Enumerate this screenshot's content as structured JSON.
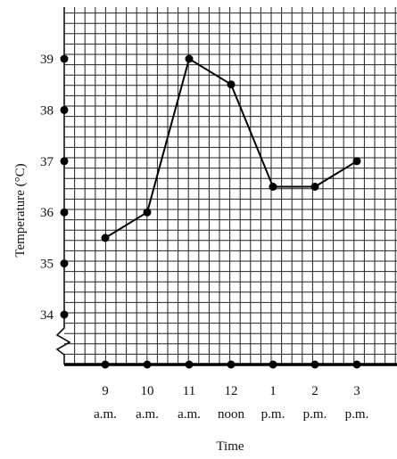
{
  "chart_data": {
    "type": "line",
    "xlabel": "Time",
    "ylabel": "Temperature (°C)",
    "categories": [
      {
        "top": "9",
        "bottom": "a.m."
      },
      {
        "top": "10",
        "bottom": "a.m."
      },
      {
        "top": "11",
        "bottom": "a.m."
      },
      {
        "top": "12",
        "bottom": "noon"
      },
      {
        "top": "1",
        "bottom": "p.m."
      },
      {
        "top": "2",
        "bottom": "p.m."
      },
      {
        "top": "3",
        "bottom": "p.m."
      }
    ],
    "series": [
      {
        "values": [
          35.5,
          36,
          39,
          38.5,
          36.5,
          36.5,
          37
        ]
      }
    ],
    "y_ticks": [
      "34",
      "35",
      "36",
      "37",
      "38",
      "39"
    ],
    "axis_break": true,
    "grid": true
  }
}
